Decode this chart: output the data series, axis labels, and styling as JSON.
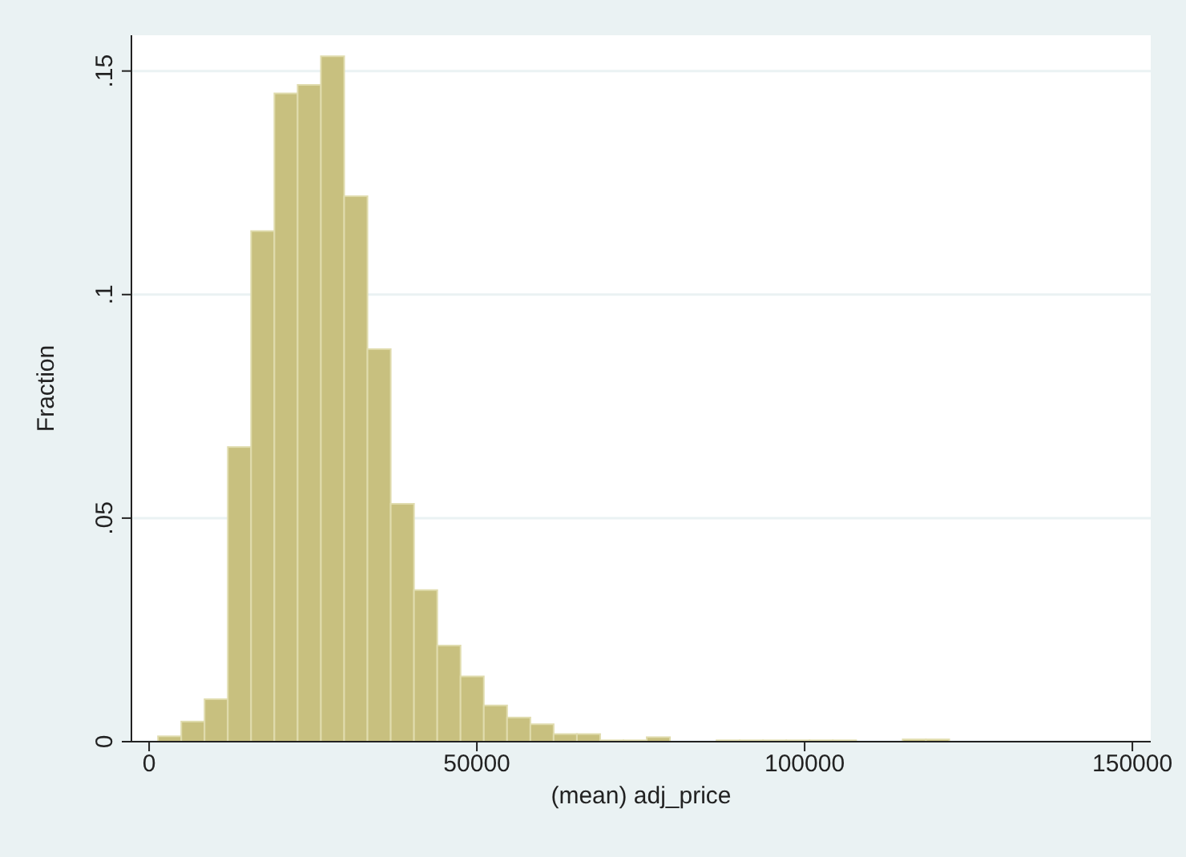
{
  "chart_data": {
    "type": "histogram",
    "xlabel": "(mean) adj_price",
    "ylabel": "Fraction",
    "bins": [
      1300,
      4850,
      8400,
      11950,
      15500,
      19050,
      22600,
      26150,
      29700,
      33250,
      36800,
      40350,
      43900,
      47450,
      51000,
      54550,
      58100,
      61650,
      65200,
      68750,
      72300,
      75850,
      79400,
      82950,
      86500,
      90050,
      93600,
      97150,
      100700,
      104250,
      107800,
      111350,
      114900,
      118450,
      122000
    ],
    "values": [
      0.0012,
      0.0045,
      0.0095,
      0.0659,
      0.1142,
      0.145,
      0.1469,
      0.1533,
      0.122,
      0.0878,
      0.0532,
      0.0339,
      0.0215,
      0.0146,
      0.0081,
      0.0054,
      0.0039,
      0.0017,
      0.0017,
      0.0003,
      0.0003,
      0.001,
      0,
      0,
      0.0003,
      0.0003,
      0.0003,
      0.0003,
      0.0003,
      0.0003,
      0,
      0,
      0.0005,
      0.0005
    ],
    "color": "#c8c07f",
    "xlim": [
      -2700,
      152800
    ],
    "xticks": [
      0,
      50000,
      100000,
      150000
    ],
    "ylim": [
      0,
      0.158
    ],
    "yticks": [
      {
        "value": 0,
        "label": "0"
      },
      {
        "value": 0.05,
        "label": ".05"
      },
      {
        "value": 0.1,
        "label": ".1"
      },
      {
        "value": 0.15,
        "label": ".15"
      }
    ],
    "grid": "y"
  }
}
